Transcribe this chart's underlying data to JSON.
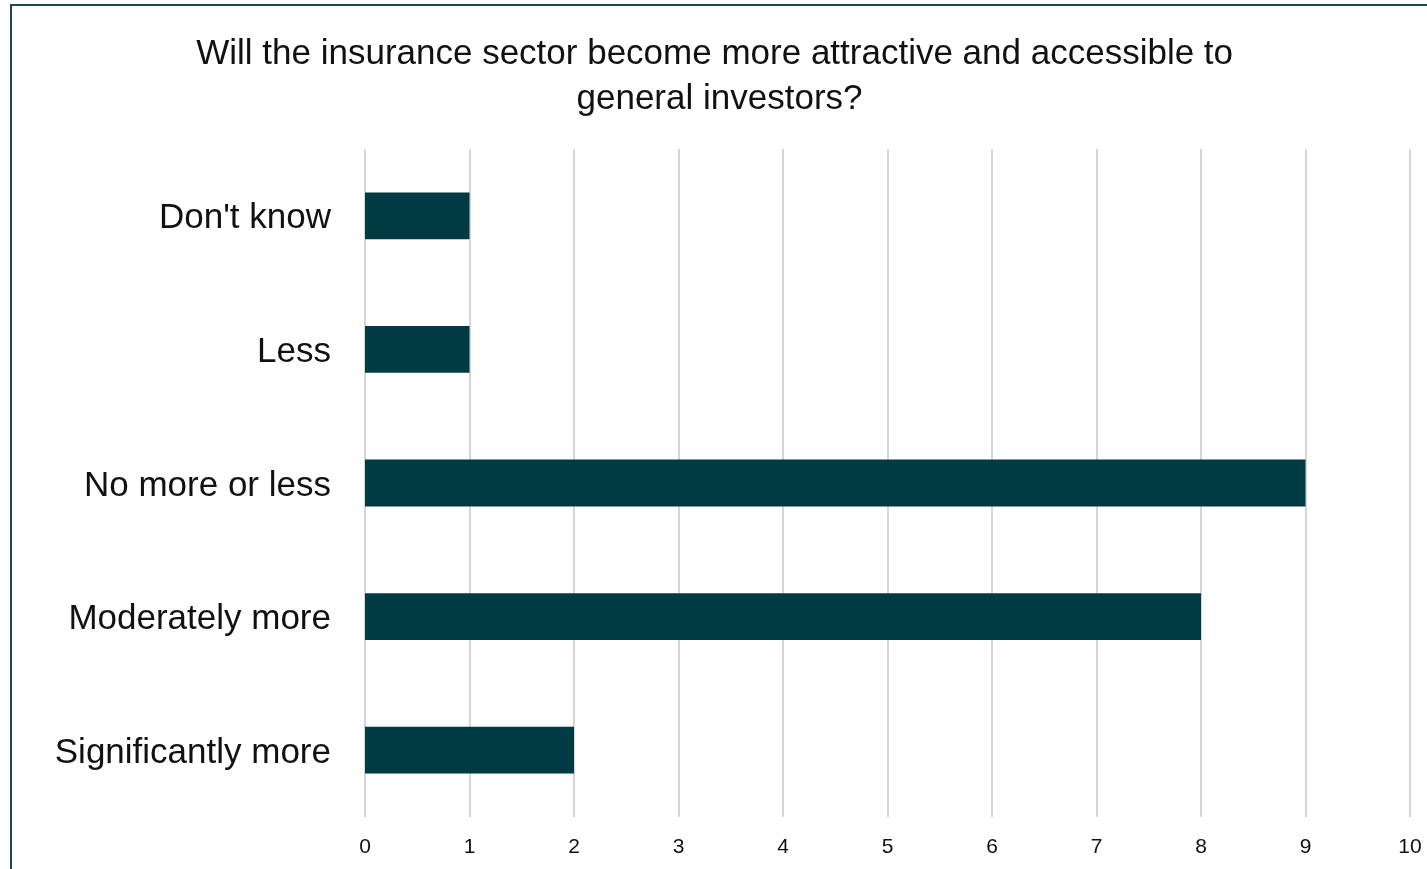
{
  "chart_data": {
    "type": "bar",
    "orientation": "horizontal",
    "title": "Will the insurance sector become more attractive and accessible to general investors?",
    "categories": [
      "Don't know",
      "Less",
      "No more or less",
      "Moderately more",
      "Significantly more"
    ],
    "values": [
      1,
      1,
      9,
      8,
      2
    ],
    "color": "#003b44",
    "xlim": [
      0,
      10
    ],
    "xticks": [
      0,
      1,
      2,
      3,
      4,
      5,
      6,
      7,
      8,
      9,
      10
    ],
    "grid": "x"
  }
}
